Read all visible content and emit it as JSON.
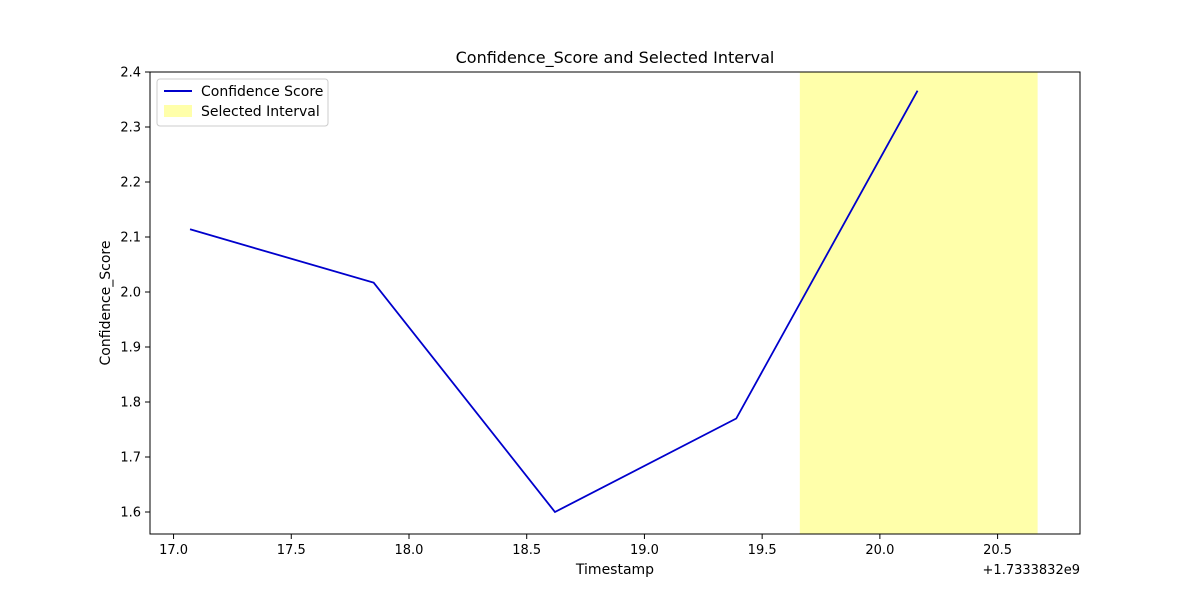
{
  "chart_data": {
    "type": "line",
    "title": "Confidence_Score and Selected Interval",
    "xlabel": "Timestamp",
    "ylabel": "Confidence_Score",
    "x_offset_label": "+1.7333832e9",
    "xlim": [
      16.9,
      20.85
    ],
    "ylim": [
      1.56,
      2.4
    ],
    "x_ticks": [
      17.0,
      17.5,
      18.0,
      18.5,
      19.0,
      19.5,
      20.0,
      20.5
    ],
    "x_tick_labels": [
      "17.0",
      "17.5",
      "18.0",
      "18.5",
      "19.0",
      "19.5",
      "20.0",
      "20.5"
    ],
    "y_ticks": [
      1.6,
      1.7,
      1.8,
      1.9,
      2.0,
      2.1,
      2.2,
      2.3,
      2.4
    ],
    "y_tick_labels": [
      "1.6",
      "1.7",
      "1.8",
      "1.9",
      "2.0",
      "2.1",
      "2.2",
      "2.3",
      "2.4"
    ],
    "series": [
      {
        "name": "Confidence Score",
        "color": "#0000cc",
        "x": [
          17.07,
          17.85,
          18.62,
          19.39,
          20.16
        ],
        "y": [
          2.114,
          2.017,
          1.6,
          1.77,
          2.366
        ]
      }
    ],
    "span": {
      "name": "Selected Interval",
      "color": "#ffffaa",
      "x_start": 19.66,
      "x_end": 20.67
    },
    "grid": false,
    "legend_position": "upper-left"
  }
}
